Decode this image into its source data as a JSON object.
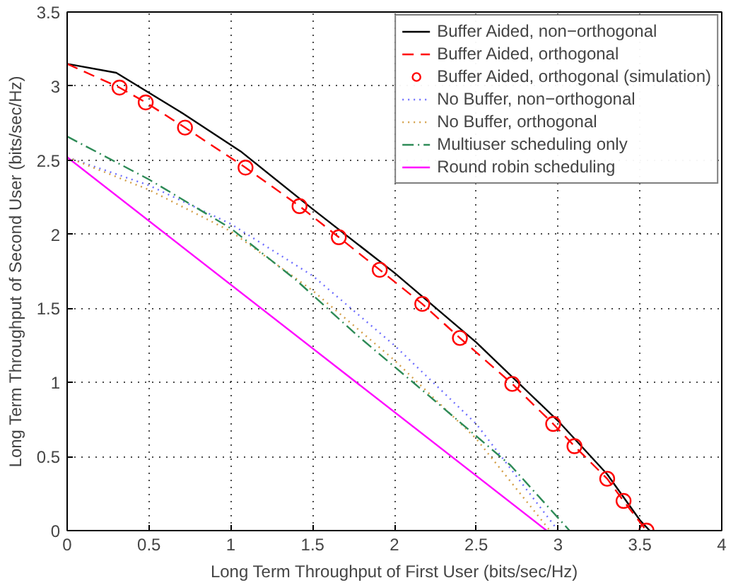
{
  "chart_data": {
    "type": "line",
    "xlabel": "Long Term Throughput of First User (bits/sec/Hz)",
    "ylabel": "Long Term Throughput of Second User (bits/sec/Hz)",
    "xlim": [
      0,
      4
    ],
    "ylim": [
      0,
      3.5
    ],
    "xticks": [
      0,
      0.5,
      1,
      1.5,
      2,
      2.5,
      3,
      3.5,
      4
    ],
    "yticks": [
      0,
      0.5,
      1,
      1.5,
      2,
      2.5,
      3,
      3.5
    ],
    "grid": true,
    "legend": "top right",
    "series": [
      {
        "name": "Buffer Aided, non−orthogonal",
        "color": "#000000",
        "line_style": "solid",
        "marker": "none",
        "x": [
          0,
          0.3,
          0.7,
          1.06,
          1.5,
          2,
          2.5,
          3,
          3.3,
          3.5,
          3.56
        ],
        "values": [
          3.15,
          3.09,
          2.82,
          2.56,
          2.17,
          1.74,
          1.27,
          0.74,
          0.38,
          0.07,
          0
        ]
      },
      {
        "name": "Buffer Aided, orthogonal",
        "color": "#ff0000",
        "line_style": "dashed",
        "marker": "none",
        "x": [
          0,
          0.32,
          0.48,
          0.72,
          1.09,
          1.42,
          1.66,
          1.91,
          2.17,
          2.4,
          2.72,
          2.97,
          3.1,
          3.3,
          3.4,
          3.54
        ],
        "values": [
          3.15,
          2.99,
          2.89,
          2.72,
          2.45,
          2.19,
          1.98,
          1.76,
          1.53,
          1.3,
          0.99,
          0.72,
          0.57,
          0.35,
          0.2,
          0
        ]
      },
      {
        "name": "Buffer Aided, orthogonal (simulation)",
        "type": "scatter",
        "color": "#ff0000",
        "marker": "circle",
        "x": [
          0.32,
          0.48,
          0.72,
          1.09,
          1.42,
          1.66,
          1.91,
          2.17,
          2.4,
          2.72,
          2.97,
          3.1,
          3.3,
          3.4,
          3.54
        ],
        "values": [
          2.99,
          2.89,
          2.72,
          2.45,
          2.19,
          1.98,
          1.76,
          1.53,
          1.3,
          0.99,
          0.72,
          0.57,
          0.35,
          0.2,
          0
        ]
      },
      {
        "name": "No Buffer, non−orthogonal",
        "color": "#6f6fff",
        "line_style": "dotted",
        "marker": "none",
        "x": [
          0,
          0.5,
          1,
          1.5,
          2,
          2.5,
          3.0
        ],
        "values": [
          2.52,
          2.33,
          2.07,
          1.72,
          1.25,
          0.72,
          0
        ]
      },
      {
        "name": "No Buffer, orthogonal",
        "color": "#d4a04a",
        "line_style": "dotted",
        "marker": "none",
        "x": [
          0,
          0.5,
          1,
          1.5,
          2,
          2.5,
          2.95
        ],
        "values": [
          2.52,
          2.3,
          2.02,
          1.62,
          1.15,
          0.62,
          0
        ]
      },
      {
        "name": "Multiuser scheduling only",
        "color": "#2e8b57",
        "line_style": "dashdot",
        "marker": "none",
        "x": [
          0,
          0.5,
          1,
          1.4,
          1.77,
          2.2,
          2.71,
          3.07
        ],
        "values": [
          2.66,
          2.37,
          2.04,
          1.69,
          1.32,
          0.92,
          0.44,
          0
        ]
      },
      {
        "name": "Round robin scheduling",
        "color": "#ff00ff",
        "line_style": "solid",
        "marker": "none",
        "x": [
          0,
          2.93
        ],
        "values": [
          2.52,
          0
        ]
      }
    ]
  }
}
